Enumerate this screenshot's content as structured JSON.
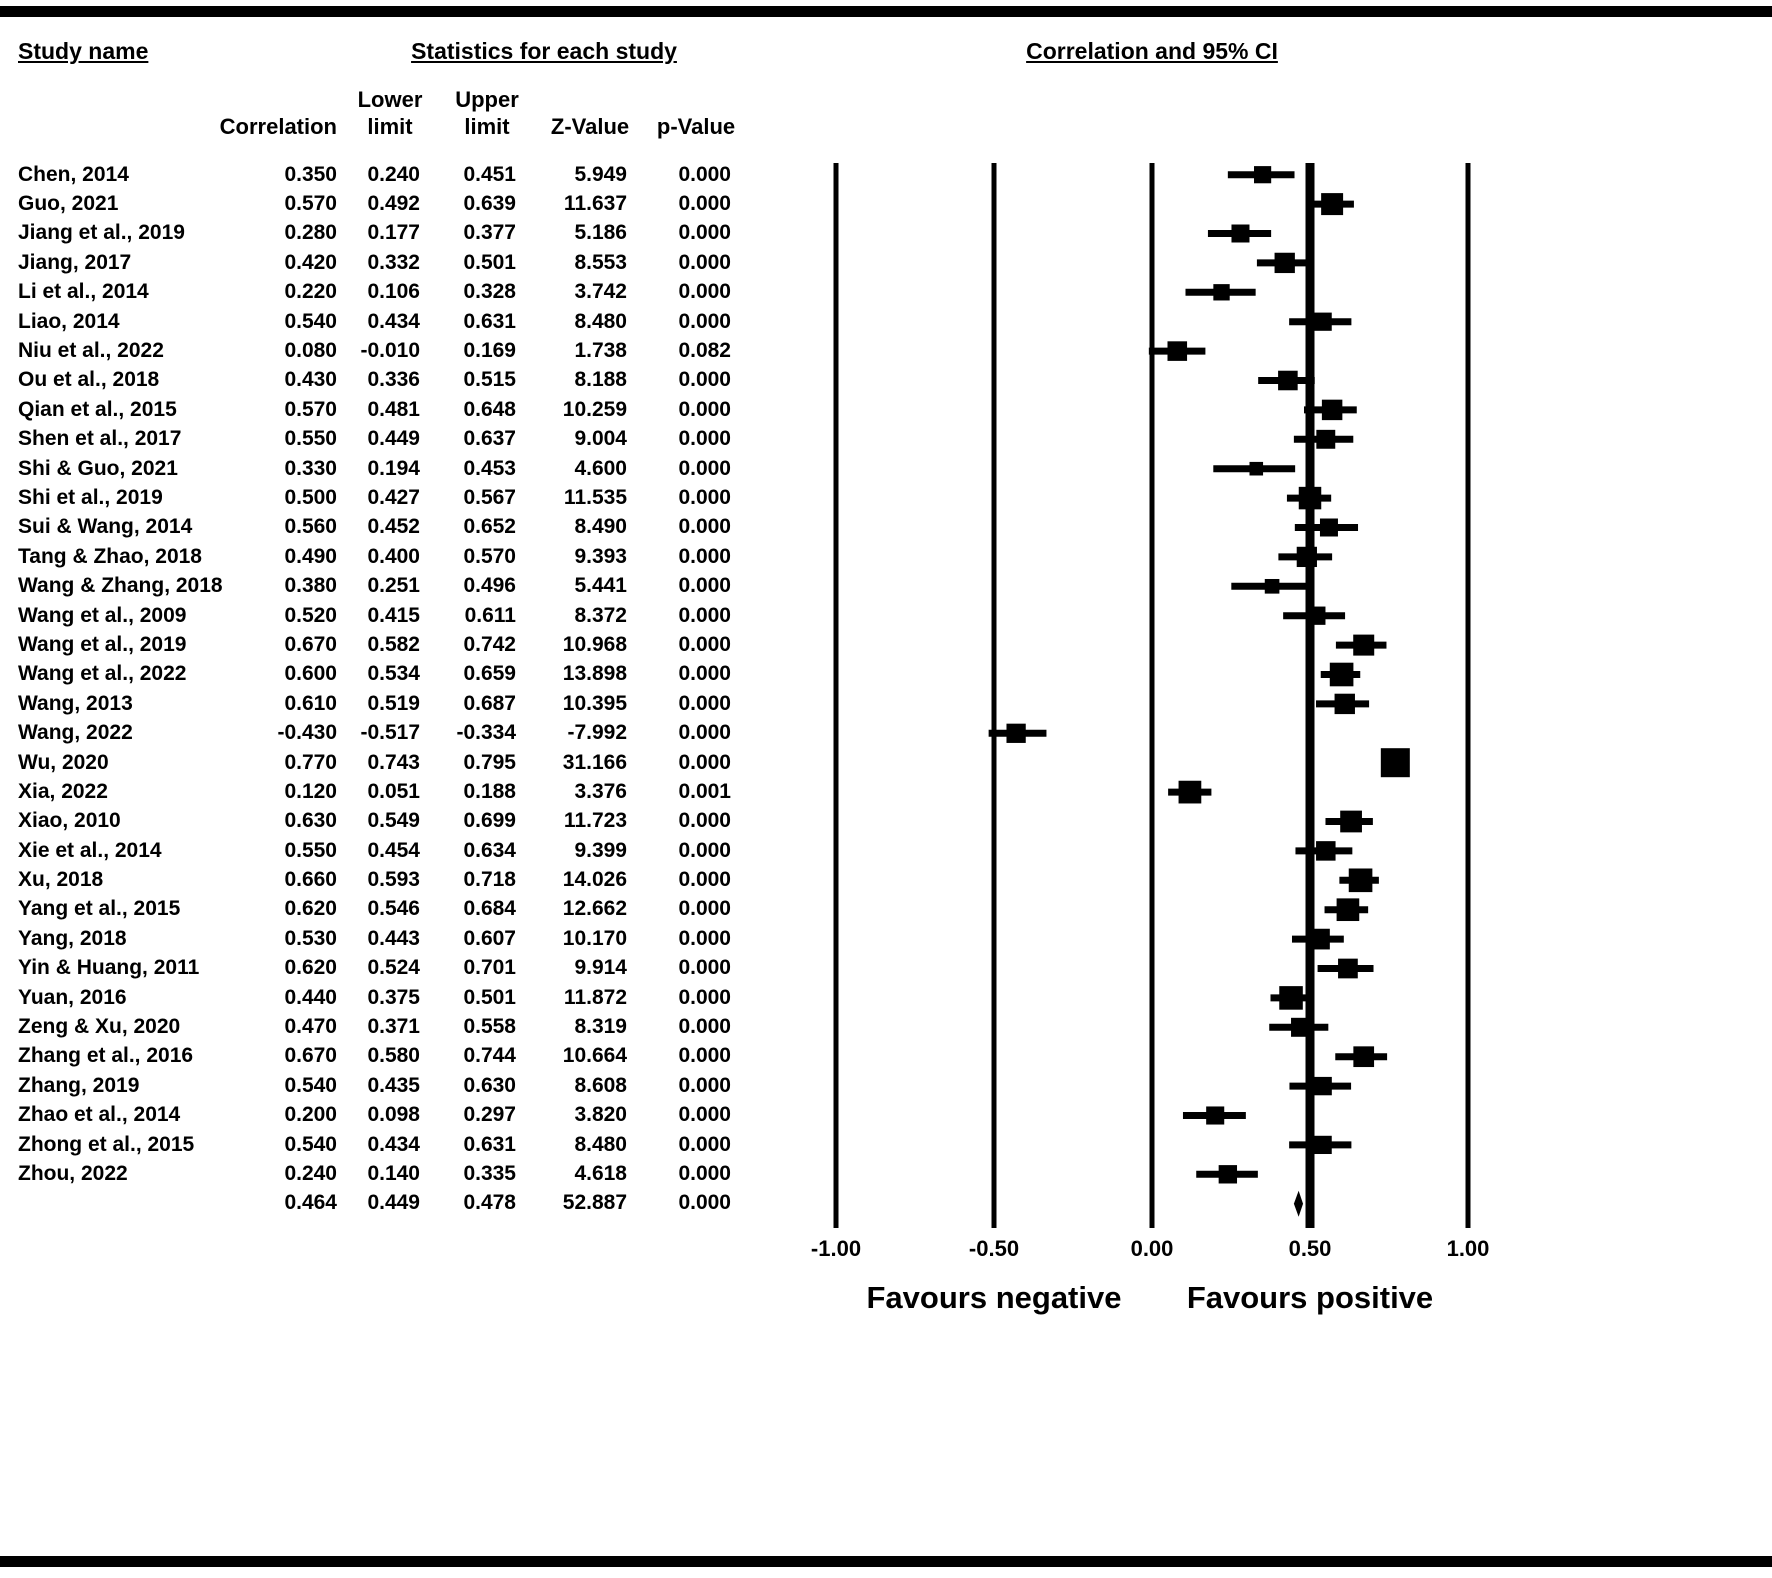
{
  "titles": {
    "study_name": "Study name",
    "statistics": "Statistics for each study",
    "ci": "Correlation and 95% CI"
  },
  "columns": {
    "correlation": "Correlation",
    "lower_limit": "Lower limit",
    "upper_limit": "Upper limit",
    "z_value": "Z-Value",
    "p_value": "p-Value"
  },
  "footer": {
    "favours_negative": "Favours negative",
    "favours_positive": "Favours positive"
  },
  "chart_data": {
    "type": "forest",
    "title": "Correlation and 95% CI",
    "xlabel": "",
    "xlim": [
      -1.0,
      1.0
    ],
    "x_tick_values": [
      -1.0,
      -0.5,
      0.0,
      0.5,
      1.0
    ],
    "x_tick_labels": [
      "-1.00",
      "-0.50",
      "0.00",
      "0.50",
      "1.00"
    ],
    "emphasized_gridline": 0.5,
    "studies": [
      {
        "name": "Chen, 2014",
        "correlation": 0.35,
        "lower": 0.24,
        "upper": 0.451,
        "z": 5.949,
        "p": 0.0
      },
      {
        "name": "Guo, 2021",
        "correlation": 0.57,
        "lower": 0.492,
        "upper": 0.639,
        "z": 11.637,
        "p": 0.0
      },
      {
        "name": "Jiang et al., 2019",
        "correlation": 0.28,
        "lower": 0.177,
        "upper": 0.377,
        "z": 5.186,
        "p": 0.0
      },
      {
        "name": "Jiang, 2017",
        "correlation": 0.42,
        "lower": 0.332,
        "upper": 0.501,
        "z": 8.553,
        "p": 0.0
      },
      {
        "name": "Li et al., 2014",
        "correlation": 0.22,
        "lower": 0.106,
        "upper": 0.328,
        "z": 3.742,
        "p": 0.0
      },
      {
        "name": "Liao, 2014",
        "correlation": 0.54,
        "lower": 0.434,
        "upper": 0.631,
        "z": 8.48,
        "p": 0.0
      },
      {
        "name": "Niu et al., 2022",
        "correlation": 0.08,
        "lower": -0.01,
        "upper": 0.169,
        "z": 1.738,
        "p": 0.082
      },
      {
        "name": "Ou et al., 2018",
        "correlation": 0.43,
        "lower": 0.336,
        "upper": 0.515,
        "z": 8.188,
        "p": 0.0
      },
      {
        "name": "Qian et al., 2015",
        "correlation": 0.57,
        "lower": 0.481,
        "upper": 0.648,
        "z": 10.259,
        "p": 0.0
      },
      {
        "name": "Shen et al., 2017",
        "correlation": 0.55,
        "lower": 0.449,
        "upper": 0.637,
        "z": 9.004,
        "p": 0.0
      },
      {
        "name": "Shi & Guo, 2021",
        "correlation": 0.33,
        "lower": 0.194,
        "upper": 0.453,
        "z": 4.6,
        "p": 0.0
      },
      {
        "name": "Shi et al., 2019",
        "correlation": 0.5,
        "lower": 0.427,
        "upper": 0.567,
        "z": 11.535,
        "p": 0.0
      },
      {
        "name": "Sui & Wang, 2014",
        "correlation": 0.56,
        "lower": 0.452,
        "upper": 0.652,
        "z": 8.49,
        "p": 0.0
      },
      {
        "name": "Tang & Zhao, 2018",
        "correlation": 0.49,
        "lower": 0.4,
        "upper": 0.57,
        "z": 9.393,
        "p": 0.0
      },
      {
        "name": "Wang & Zhang, 2018",
        "correlation": 0.38,
        "lower": 0.251,
        "upper": 0.496,
        "z": 5.441,
        "p": 0.0
      },
      {
        "name": "Wang et al., 2009",
        "correlation": 0.52,
        "lower": 0.415,
        "upper": 0.611,
        "z": 8.372,
        "p": 0.0
      },
      {
        "name": "Wang et al., 2019",
        "correlation": 0.67,
        "lower": 0.582,
        "upper": 0.742,
        "z": 10.968,
        "p": 0.0
      },
      {
        "name": "Wang et al., 2022",
        "correlation": 0.6,
        "lower": 0.534,
        "upper": 0.659,
        "z": 13.898,
        "p": 0.0
      },
      {
        "name": "Wang, 2013",
        "correlation": 0.61,
        "lower": 0.519,
        "upper": 0.687,
        "z": 10.395,
        "p": 0.0
      },
      {
        "name": "Wang, 2022",
        "correlation": -0.43,
        "lower": -0.517,
        "upper": -0.334,
        "z": -7.992,
        "p": 0.0
      },
      {
        "name": "Wu, 2020",
        "correlation": 0.77,
        "lower": 0.743,
        "upper": 0.795,
        "z": 31.166,
        "p": 0.0
      },
      {
        "name": "Xia, 2022",
        "correlation": 0.12,
        "lower": 0.051,
        "upper": 0.188,
        "z": 3.376,
        "p": 0.001
      },
      {
        "name": "Xiao, 2010",
        "correlation": 0.63,
        "lower": 0.549,
        "upper": 0.699,
        "z": 11.723,
        "p": 0.0
      },
      {
        "name": "Xie et al., 2014",
        "correlation": 0.55,
        "lower": 0.454,
        "upper": 0.634,
        "z": 9.399,
        "p": 0.0
      },
      {
        "name": "Xu, 2018",
        "correlation": 0.66,
        "lower": 0.593,
        "upper": 0.718,
        "z": 14.026,
        "p": 0.0
      },
      {
        "name": "Yang et al., 2015",
        "correlation": 0.62,
        "lower": 0.546,
        "upper": 0.684,
        "z": 12.662,
        "p": 0.0
      },
      {
        "name": "Yang, 2018",
        "correlation": 0.53,
        "lower": 0.443,
        "upper": 0.607,
        "z": 10.17,
        "p": 0.0
      },
      {
        "name": "Yin & Huang, 2011",
        "correlation": 0.62,
        "lower": 0.524,
        "upper": 0.701,
        "z": 9.914,
        "p": 0.0
      },
      {
        "name": "Yuan, 2016",
        "correlation": 0.44,
        "lower": 0.375,
        "upper": 0.501,
        "z": 11.872,
        "p": 0.0
      },
      {
        "name": "Zeng & Xu, 2020",
        "correlation": 0.47,
        "lower": 0.371,
        "upper": 0.558,
        "z": 8.319,
        "p": 0.0
      },
      {
        "name": "Zhang et al., 2016",
        "correlation": 0.67,
        "lower": 0.58,
        "upper": 0.744,
        "z": 10.664,
        "p": 0.0
      },
      {
        "name": "Zhang, 2019",
        "correlation": 0.54,
        "lower": 0.435,
        "upper": 0.63,
        "z": 8.608,
        "p": 0.0
      },
      {
        "name": "Zhao et al., 2014",
        "correlation": 0.2,
        "lower": 0.098,
        "upper": 0.297,
        "z": 3.82,
        "p": 0.0
      },
      {
        "name": "Zhong et al., 2015",
        "correlation": 0.54,
        "lower": 0.434,
        "upper": 0.631,
        "z": 8.48,
        "p": 0.0
      },
      {
        "name": "Zhou, 2022",
        "correlation": 0.24,
        "lower": 0.14,
        "upper": 0.335,
        "z": 4.618,
        "p": 0.0
      }
    ],
    "summary": {
      "name": "",
      "correlation": 0.464,
      "lower": 0.449,
      "upper": 0.478,
      "z": 52.887,
      "p": 0.0
    }
  }
}
